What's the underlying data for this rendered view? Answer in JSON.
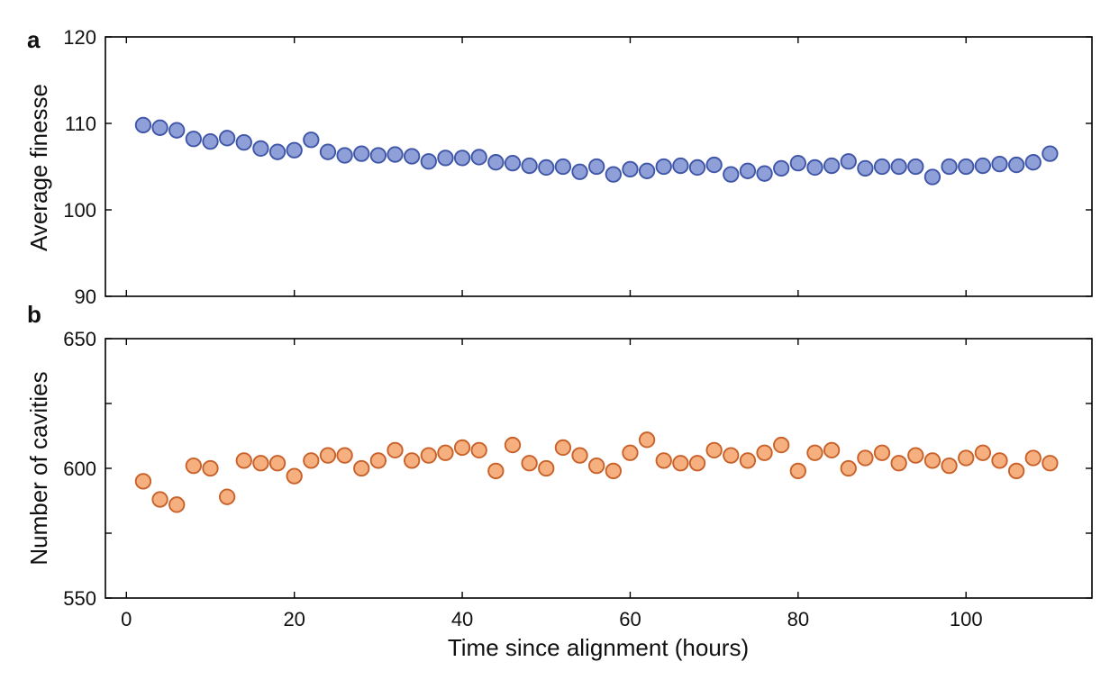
{
  "chart_data": [
    {
      "type": "scatter",
      "panel_label": "a",
      "ylabel": "Average finesse",
      "xlabel": "",
      "xlim": [
        -2.5,
        115
      ],
      "ylim": [
        90,
        120
      ],
      "yticks": [
        90,
        100,
        110,
        120
      ],
      "xticks": [
        0,
        20,
        40,
        60,
        80,
        100
      ],
      "show_x_tick_labels": false,
      "grid": false,
      "marker_fill": "#8fa0d8",
      "marker_edge": "#3f56a8",
      "series": [
        {
          "name": "Average finesse",
          "x": [
            2,
            4,
            6,
            8,
            10,
            12,
            14,
            16,
            18,
            20,
            22,
            24,
            26,
            28,
            30,
            32,
            34,
            36,
            38,
            40,
            42,
            44,
            46,
            48,
            50,
            52,
            54,
            56,
            58,
            60,
            62,
            64,
            66,
            68,
            70,
            72,
            74,
            76,
            78,
            80,
            82,
            84,
            86,
            88,
            90,
            92,
            94,
            96,
            98,
            100,
            102,
            104,
            106,
            108,
            110
          ],
          "y": [
            109.8,
            109.5,
            109.2,
            108.2,
            107.9,
            108.3,
            107.8,
            107.1,
            106.7,
            106.9,
            108.1,
            106.7,
            106.3,
            106.5,
            106.3,
            106.4,
            106.2,
            105.6,
            106.0,
            106.0,
            106.1,
            105.5,
            105.4,
            105.1,
            104.9,
            105.0,
            104.4,
            105.0,
            104.1,
            104.7,
            104.5,
            105.0,
            105.1,
            104.9,
            105.2,
            104.1,
            104.5,
            104.2,
            104.8,
            105.4,
            104.9,
            105.1,
            105.6,
            104.8,
            105.0,
            105.0,
            105.0,
            103.8,
            105.0,
            105.0,
            105.1,
            105.3,
            105.2,
            105.5,
            106.5
          ]
        }
      ]
    },
    {
      "type": "scatter",
      "panel_label": "b",
      "ylabel": "Number of cavities",
      "xlabel": "Time since alignment (hours)",
      "xlim": [
        -2.5,
        115
      ],
      "ylim": [
        550,
        650
      ],
      "yticks": [
        550,
        575,
        600,
        625,
        650
      ],
      "ytick_labels": [
        "550",
        "",
        "600",
        "",
        "650"
      ],
      "xticks": [
        0,
        20,
        40,
        60,
        80,
        100
      ],
      "show_x_tick_labels": true,
      "grid": false,
      "marker_fill": "#f6b07f",
      "marker_edge": "#c8612a",
      "series": [
        {
          "name": "Number of cavities",
          "x": [
            2,
            4,
            6,
            8,
            10,
            12,
            14,
            16,
            18,
            20,
            22,
            24,
            26,
            28,
            30,
            32,
            34,
            36,
            38,
            40,
            42,
            44,
            46,
            48,
            50,
            52,
            54,
            56,
            58,
            60,
            62,
            64,
            66,
            68,
            70,
            72,
            74,
            76,
            78,
            80,
            82,
            84,
            86,
            88,
            90,
            92,
            94,
            96,
            98,
            100,
            102,
            104,
            106,
            108,
            110
          ],
          "y": [
            595,
            588,
            586,
            601,
            600,
            589,
            603,
            602,
            602,
            597,
            603,
            605,
            605,
            600,
            603,
            607,
            603,
            605,
            606,
            608,
            607,
            599,
            609,
            602,
            600,
            608,
            605,
            601,
            599,
            606,
            611,
            603,
            602,
            602,
            607,
            605,
            603,
            606,
            609,
            599,
            606,
            607,
            600,
            604,
            606,
            602,
            605,
            603,
            601,
            604,
            606,
            603,
            599,
            604,
            602
          ]
        }
      ]
    }
  ]
}
